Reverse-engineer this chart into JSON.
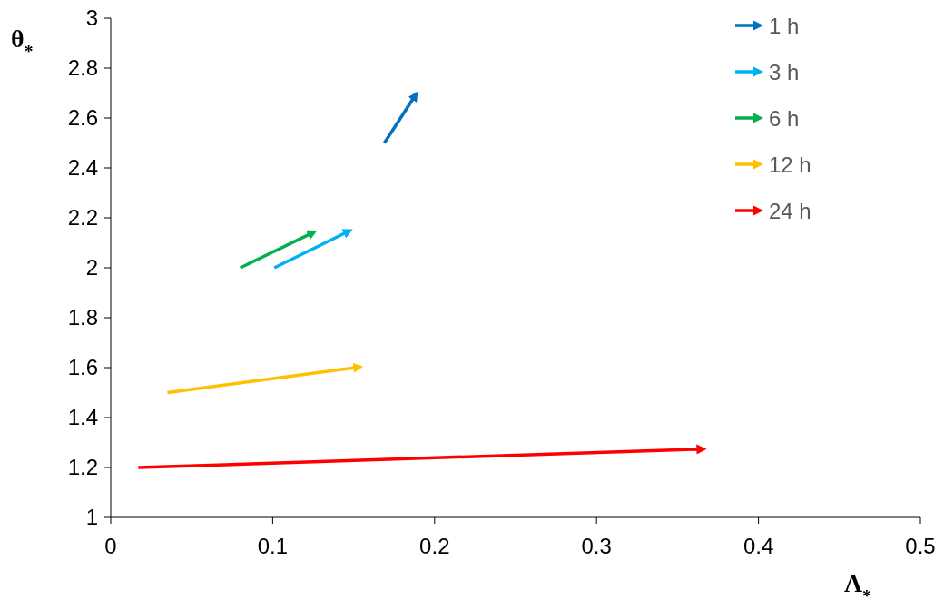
{
  "chart_data": {
    "type": "line",
    "xlabel": "Λ$_{*}$",
    "ylabel": "θ$_{*}$",
    "xlim": [
      0,
      0.5
    ],
    "xticks": [
      0,
      0.1,
      0.2,
      0.3,
      0.4,
      0.5
    ],
    "ylim": [
      1,
      3
    ],
    "yticks": [
      1,
      1.2,
      1.4,
      1.6,
      1.8,
      2,
      2.2,
      2.4,
      2.6,
      2.8,
      3
    ],
    "grid": false,
    "legend": "top right",
    "marker": "none",
    "line_style": "solid",
    "series": [
      {
        "name": "1 h",
        "color": "#0070c0",
        "x": [
          0.169,
          0.187
        ],
        "values": [
          2.5,
          2.68
        ]
      },
      {
        "name": "3 h",
        "color": "#00b0f0",
        "x": [
          0.101,
          0.145
        ],
        "values": [
          2.0,
          2.14
        ]
      },
      {
        "name": "6 h",
        "color": "#00b050",
        "x": [
          0.08,
          0.123
        ],
        "values": [
          2.0,
          2.135
        ]
      },
      {
        "name": "12 h",
        "color": "#ffc000",
        "x": [
          0.035,
          0.151
        ],
        "values": [
          1.5,
          1.6
        ]
      },
      {
        "name": "24 h",
        "color": "#ff0000",
        "x": [
          0.017,
          0.363
        ],
        "values": [
          1.2,
          1.273
        ]
      }
    ]
  }
}
